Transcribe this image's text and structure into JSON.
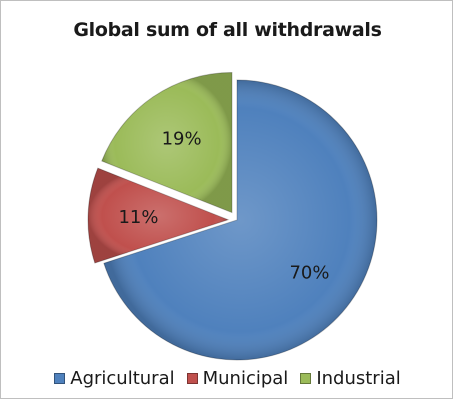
{
  "chart_data": {
    "type": "pie",
    "title": "Global sum of all withdrawals",
    "categories": [
      "Agricultural",
      "Municipal",
      "Industrial"
    ],
    "values": [
      70,
      11,
      19
    ],
    "labels": [
      "70%",
      "11%",
      "19%"
    ],
    "colors": [
      "#4f81bd",
      "#c0504d",
      "#9bbb59"
    ],
    "legend_position": "bottom",
    "exploded": [
      "Municipal",
      "Industrial"
    ]
  }
}
